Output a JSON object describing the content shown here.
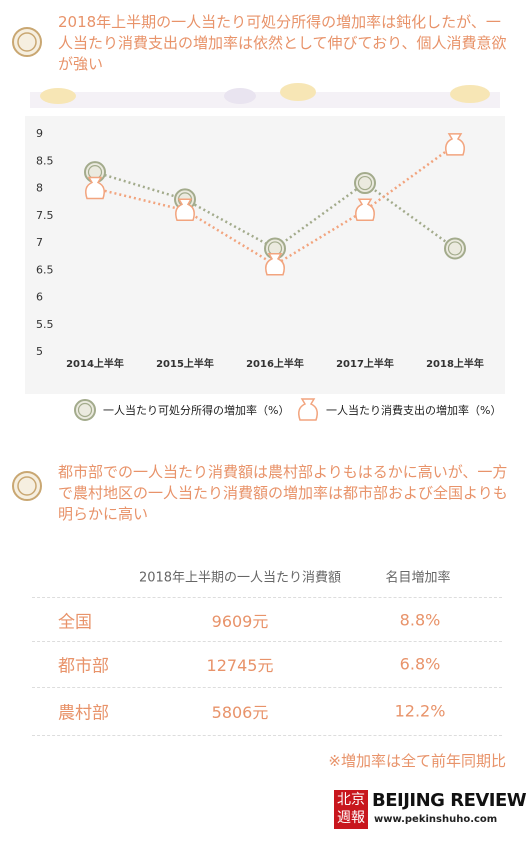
{
  "heading1": "2018年上半期の一人当たり可処分所得の増加率は鈍化したが、一人当たり消費支出の増加率は依然として伸びており、個人消費意欲が強い",
  "chart_data": {
    "type": "line",
    "categories": [
      "2014上半年",
      "2015上半年",
      "2016上半年",
      "2017上半年",
      "2018上半年"
    ],
    "series": [
      {
        "name": "一人当たり可処分所得の増加率（%）",
        "color": "#a3ab8c",
        "values": [
          8.3,
          7.8,
          6.9,
          8.1,
          6.9
        ]
      },
      {
        "name": "一人当たり消費支出の増加率（%）",
        "color": "#f2a47e",
        "values": [
          8.0,
          7.6,
          6.6,
          7.6,
          8.8
        ]
      }
    ],
    "ylim": [
      5,
      9
    ],
    "yticks": [
      5,
      5.5,
      6,
      6.5,
      7,
      7.5,
      8,
      8.5,
      9
    ],
    "grid": false,
    "legend": "bottom"
  },
  "heading2": "都市部での一人当たり消費額は農村部よりもはるかに高いが、一方で農村地区の一人当たり消費額の増加率は都市部および全国よりも明らかに高い",
  "table": {
    "header": [
      "2018年上半期の一人当たり消費額",
      "名目増加率"
    ],
    "rows": [
      [
        "全国",
        "9609元",
        "8.8%"
      ],
      [
        "都市部",
        "12745元",
        "6.8%"
      ],
      [
        "農村部",
        "5806元",
        "12.2%"
      ]
    ]
  },
  "note": "※増加率は全て前年同期比",
  "footer": {
    "logo_cn": "北京週報",
    "logo_en": "BEIJING REVIEW",
    "url": "www.pekinshuho.com"
  }
}
